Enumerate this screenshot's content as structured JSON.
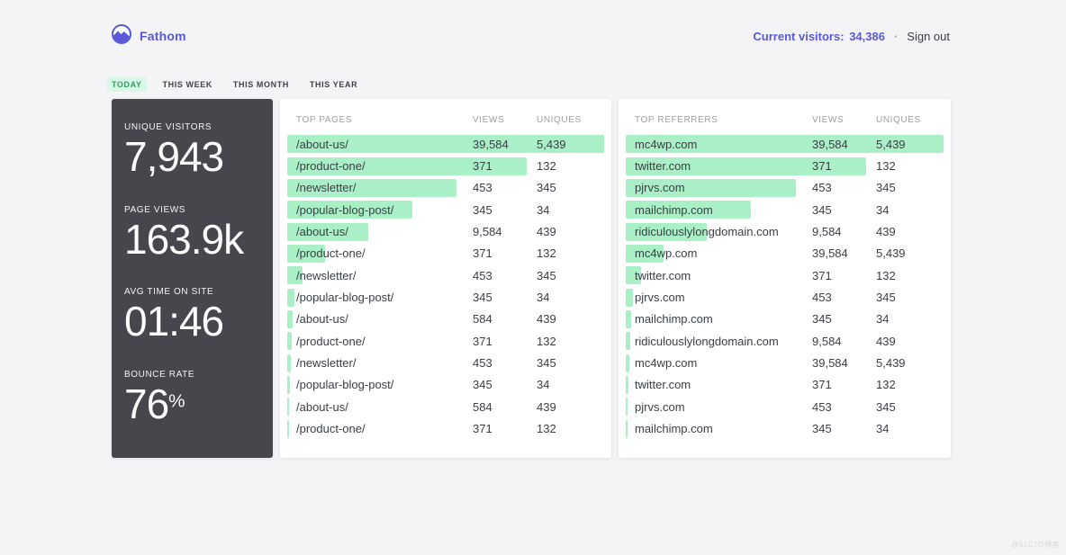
{
  "page": {
    "watermark": "@51CTO博客"
  },
  "colors": {
    "page_bg": "#F4F4F6",
    "indigo": "#5A5AD8",
    "mint": "#A9F0C6",
    "dark_card": "#45474D",
    "tab_green": "#2F9F60",
    "tab_green_bg": "#D9F6E6"
  },
  "header": {
    "brand": "Fathom",
    "current_visitors_label": "Current visitors:",
    "current_visitors_value": "34,386",
    "separator": "·",
    "sign_out": "Sign out"
  },
  "tabs": [
    {
      "label": "TODAY",
      "active": true
    },
    {
      "label": "THIS WEEK",
      "active": false
    },
    {
      "label": "THIS MONTH",
      "active": false
    },
    {
      "label": "THIS YEAR",
      "active": false
    }
  ],
  "stats": [
    {
      "label": "UNIQUE VISITORS",
      "value": "7,943",
      "suffix": ""
    },
    {
      "label": "PAGE VIEWS",
      "value": "163.9k",
      "suffix": ""
    },
    {
      "label": "AVG TIME ON SITE",
      "value": "01:46",
      "suffix": ""
    },
    {
      "label": "BOUNCE RATE",
      "value": "76",
      "suffix": "%"
    }
  ],
  "tables": [
    {
      "title": "TOP PAGES",
      "col_views": "VIEWS",
      "col_uniques": "UNIQUES",
      "rows": [
        {
          "name": "/about-us/",
          "views": "39,584",
          "uniques": "5,439",
          "bar_pct": 100
        },
        {
          "name": "/product-one/",
          "views": "371",
          "uniques": "132",
          "bar_pct": 75.5
        },
        {
          "name": "/newsletter/",
          "views": "453",
          "uniques": "345",
          "bar_pct": 53.5
        },
        {
          "name": "/popular-blog-post/",
          "views": "345",
          "uniques": "34",
          "bar_pct": 39.5
        },
        {
          "name": "/about-us/",
          "views": "9,584",
          "uniques": "439",
          "bar_pct": 25.5
        },
        {
          "name": "/product-one/",
          "views": "371",
          "uniques": "132",
          "bar_pct": 12
        },
        {
          "name": "/newsletter/",
          "views": "453",
          "uniques": "345",
          "bar_pct": 4.8
        },
        {
          "name": "/popular-blog-post/",
          "views": "345",
          "uniques": "34",
          "bar_pct": 2.4
        },
        {
          "name": "/about-us/",
          "views": "584",
          "uniques": "439",
          "bar_pct": 1.8
        },
        {
          "name": "/product-one/",
          "views": "371",
          "uniques": "132",
          "bar_pct": 1.4
        },
        {
          "name": "/newsletter/",
          "views": "453",
          "uniques": "345",
          "bar_pct": 1.1
        },
        {
          "name": "/popular-blog-post/",
          "views": "345",
          "uniques": "34",
          "bar_pct": 0.9
        },
        {
          "name": "/about-us/",
          "views": "584",
          "uniques": "439",
          "bar_pct": 0.7
        },
        {
          "name": "/product-one/",
          "views": "371",
          "uniques": "132",
          "bar_pct": 0.55
        }
      ]
    },
    {
      "title": "TOP REFERRERS",
      "col_views": "VIEWS",
      "col_uniques": "UNIQUES",
      "rows": [
        {
          "name": "mc4wp.com",
          "views": "39,584",
          "uniques": "5,439",
          "bar_pct": 100
        },
        {
          "name": "twitter.com",
          "views": "371",
          "uniques": "132",
          "bar_pct": 75.5
        },
        {
          "name": "pjrvs.com",
          "views": "453",
          "uniques": "345",
          "bar_pct": 53.5
        },
        {
          "name": "mailchimp.com",
          "views": "345",
          "uniques": "34",
          "bar_pct": 39.5
        },
        {
          "name": "ridiculouslylongdomain.com",
          "views": "9,584",
          "uniques": "439",
          "bar_pct": 25.5
        },
        {
          "name": "mc4wp.com",
          "views": "39,584",
          "uniques": "5,439",
          "bar_pct": 12
        },
        {
          "name": "twitter.com",
          "views": "371",
          "uniques": "132",
          "bar_pct": 4.8
        },
        {
          "name": "pjrvs.com",
          "views": "453",
          "uniques": "345",
          "bar_pct": 2.4
        },
        {
          "name": "mailchimp.com",
          "views": "345",
          "uniques": "34",
          "bar_pct": 1.8
        },
        {
          "name": "ridiculouslylongdomain.com",
          "views": "9,584",
          "uniques": "439",
          "bar_pct": 1.4
        },
        {
          "name": "mc4wp.com",
          "views": "39,584",
          "uniques": "5,439",
          "bar_pct": 1.1
        },
        {
          "name": "twitter.com",
          "views": "371",
          "uniques": "132",
          "bar_pct": 0.9
        },
        {
          "name": "pjrvs.com",
          "views": "453",
          "uniques": "345",
          "bar_pct": 0.7
        },
        {
          "name": "mailchimp.com",
          "views": "345",
          "uniques": "34",
          "bar_pct": 0.55
        }
      ]
    }
  ]
}
